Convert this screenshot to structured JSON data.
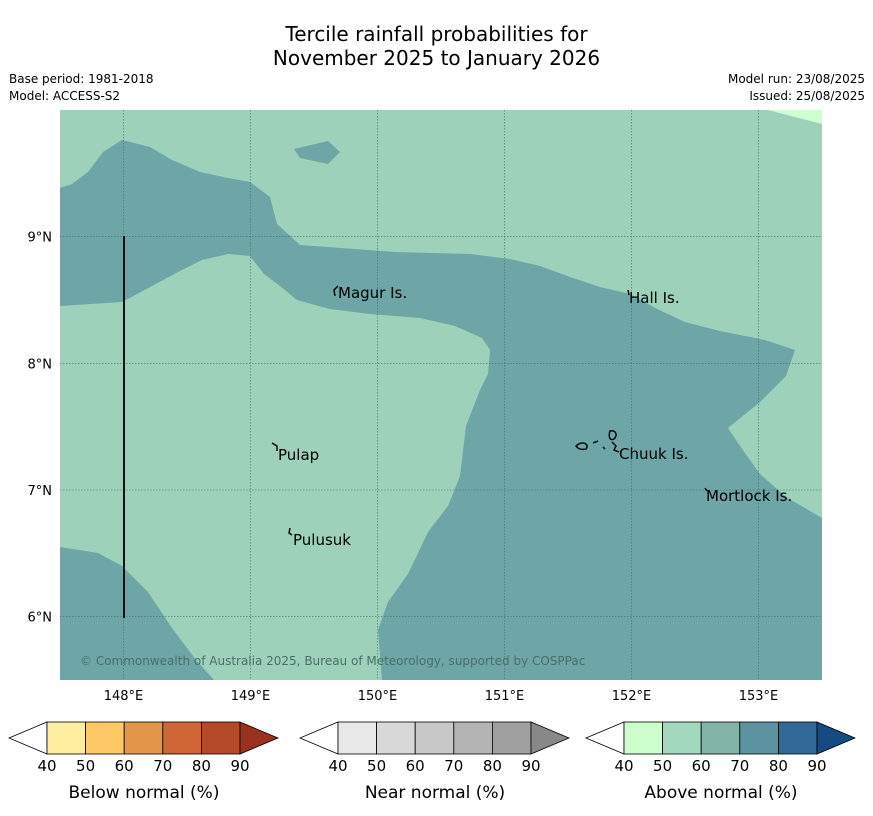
{
  "title": {
    "line1": "Tercile rainfall probabilities for",
    "line2": "November 2025 to January 2026"
  },
  "meta": {
    "base_period": "Base period: 1981-2018",
    "model": "Model: ACCESS-S2",
    "model_run": "Model run: 23/08/2025",
    "issued": "Issued: 25/08/2025"
  },
  "map": {
    "lon_range": [
      147.5,
      153.5
    ],
    "lat_range": [
      5.5,
      10.0
    ],
    "lon_ticks": [
      "148°E",
      "149°E",
      "150°E",
      "151°E",
      "152°E",
      "153°E"
    ],
    "lat_ticks": [
      "9°N",
      "8°N",
      "7°N",
      "6°N"
    ],
    "places": [
      "Magur Is.",
      "Hall Is.",
      "Pulap",
      "Chuuk Is.",
      "Mortlock Is.",
      "Pulusuk"
    ],
    "copyright": "© Commonwealth of Australia 2025, Bureau of Meteorology, supported by COSPPac",
    "region_colors": {
      "above_50_60": "#9dd1b9",
      "above_70_80": "#6ea5a6",
      "above_40_50": "#cfffcf"
    }
  },
  "colorbars": [
    {
      "title": "Below normal (%)",
      "ticks": [
        "40",
        "50",
        "60",
        "70",
        "80",
        "90"
      ],
      "colors": [
        "#ffffff",
        "#ffeda0",
        "#fec965",
        "#e3954a",
        "#d06535",
        "#b54a28",
        "#993320"
      ]
    },
    {
      "title": "Near normal (%)",
      "ticks": [
        "40",
        "50",
        "60",
        "70",
        "80",
        "90"
      ],
      "colors": [
        "#ffffff",
        "#e8e8e8",
        "#d8d8d8",
        "#c8c8c8",
        "#b4b4b4",
        "#a0a0a0",
        "#888888"
      ]
    },
    {
      "title": "Above normal (%)",
      "ticks": [
        "40",
        "50",
        "60",
        "70",
        "80",
        "90"
      ],
      "colors": [
        "#ffffff",
        "#ccffcc",
        "#a2d8bd",
        "#82b5a5",
        "#5b93a1",
        "#326897",
        "#154b80"
      ]
    }
  ]
}
